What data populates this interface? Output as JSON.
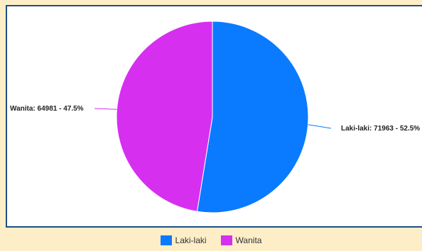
{
  "chart_data": {
    "type": "pie",
    "slices": [
      {
        "name": "Laki-laki",
        "value": 71963,
        "percent": "52.5%",
        "color": "#0a7bff",
        "label": "Laki-laki: 71963 - 52.5%"
      },
      {
        "name": "Wanita",
        "value": 64981,
        "percent": "47.5%",
        "color": "#d62ff0",
        "label": "Wanita: 64981 - 47.5%"
      }
    ],
    "legend": {
      "position": "bottom",
      "items": [
        "Laki-laki",
        "Wanita"
      ]
    }
  }
}
